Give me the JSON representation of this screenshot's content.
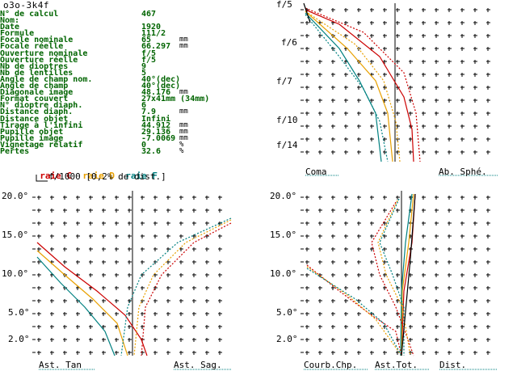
{
  "title": "o3o-3k4f",
  "params": [
    {
      "label": "N° de calcul",
      "value": "467",
      "unit": ""
    },
    {
      "label": "Nom:",
      "value": "",
      "unit": ""
    },
    {
      "label": "Date",
      "value": "1920",
      "unit": ""
    },
    {
      "label": "Formule",
      "value": "111/2",
      "unit": ""
    },
    {
      "label": "Focale nominale",
      "value": "65",
      "unit": "mm"
    },
    {
      "label": "Focale réelle",
      "value": "66.297",
      "unit": "mm"
    },
    {
      "label": "Ouverture nominale",
      "value": "f/5",
      "unit": ""
    },
    {
      "label": "Ouverture réelle",
      "value": "f/5",
      "unit": ""
    },
    {
      "label": "Nb de dioptres",
      "value": "9",
      "unit": ""
    },
    {
      "label": "Nb de lentilles",
      "value": "5",
      "unit": ""
    },
    {
      "label": "Angle de champ nom.",
      "value": "40°(dec)",
      "unit": ""
    },
    {
      "label": "Angle de champ",
      "value": "40°(dec)",
      "unit": ""
    },
    {
      "label": "Diagonale image",
      "value": "48.176",
      "unit": "mm"
    },
    {
      "label": "Format couvert",
      "value": "27x41mm (34mm)",
      "unit": ""
    },
    {
      "label": "N° dioptre diaph.",
      "value": "6",
      "unit": ""
    },
    {
      "label": "Distance diaph.",
      "value": "7.9",
      "unit": "mm"
    },
    {
      "label": "Distance objet",
      "value": "Infini",
      "unit": ""
    },
    {
      "label": "Tirage à l'infini",
      "value": "44.912",
      "unit": "mm"
    },
    {
      "label": "Pupille objet",
      "value": "29.136",
      "unit": "mm"
    },
    {
      "label": "Pupille image",
      "value": "-7.0069",
      "unit": "mm"
    },
    {
      "label": "Vignetage relatif",
      "value": "0",
      "unit": "%"
    },
    {
      "label": "Pertes",
      "value": "32.6",
      "unit": "%"
    }
  ],
  "rays": [
    {
      "label": "raie C",
      "color": "#cc0000"
    },
    {
      "label": "raie D",
      "color": "#e8a000"
    },
    {
      "label": "raie F",
      "color": "#008080"
    }
  ],
  "dist_note": "f/1000 [0,2% de dist.]",
  "plots": {
    "spherical": {
      "y_ticks": [
        "f/5",
        "f/6",
        "f/7",
        "f/10",
        "f/14"
      ],
      "label_left": "Coma",
      "label_right": "Ab. Sphé."
    },
    "astig": {
      "y_ticks": [
        "20.0°",
        "15.0°",
        "10.0°",
        "5.0°",
        "2.0°"
      ],
      "label_left": "Ast. Tan",
      "label_right": "Ast. Sag."
    },
    "field": {
      "y_ticks": [
        "20.0°",
        "15.0°",
        "10.0°",
        "5.0°",
        "2.0°"
      ],
      "label_left": "Courb.Chp.",
      "label_mid": "Ast.Tot.",
      "label_right": "Dist."
    }
  }
}
